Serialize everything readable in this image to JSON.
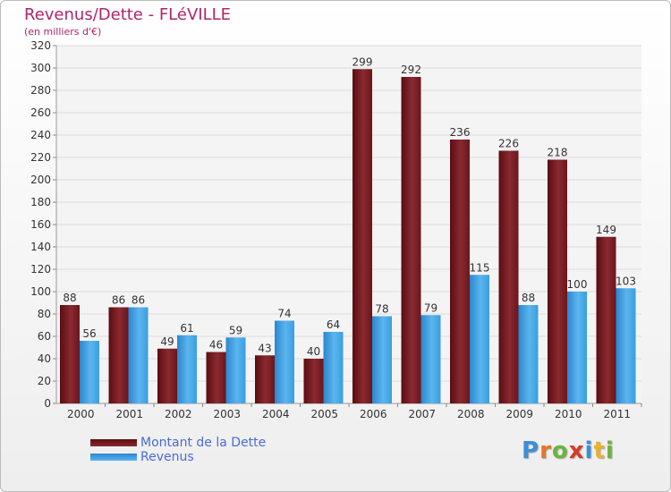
{
  "header": {
    "title": "Revenus/Dette - FLéVILLE",
    "subtitle": "(en milliers d'€)"
  },
  "chart_data": {
    "type": "bar",
    "title": "Revenus/Dette - FLéVILLE",
    "ylabel": "(en milliers d'€)",
    "categories": [
      "2000",
      "2001",
      "2002",
      "2003",
      "2004",
      "2005",
      "2006",
      "2007",
      "2008",
      "2009",
      "2010",
      "2011"
    ],
    "series": [
      {
        "name": "Montant de la Dette",
        "color": "#7a1d22",
        "values": [
          88,
          86,
          49,
          46,
          43,
          40,
          299,
          292,
          236,
          226,
          218,
          149
        ]
      },
      {
        "name": "Revenus",
        "color": "#3a9ee0",
        "values": [
          56,
          86,
          61,
          59,
          74,
          64,
          78,
          79,
          115,
          88,
          100,
          103
        ]
      }
    ],
    "ylim": [
      0,
      320
    ],
    "yticks": [
      0,
      20,
      40,
      60,
      80,
      100,
      120,
      140,
      160,
      180,
      200,
      220,
      240,
      260,
      280,
      300,
      320
    ],
    "grid": true,
    "legend": "bottom-left"
  },
  "legend": {
    "dette_label": "Montant de la Dette",
    "revenus_label": "Revenus"
  },
  "logo": {
    "letters": [
      "P",
      "r",
      "o",
      "x",
      "i",
      "t",
      "i"
    ],
    "colors": [
      "#3b8fd8",
      "#e8732a",
      "#6cb33f",
      "#d93a2b",
      "#3b8fd8",
      "#e8b32a",
      "#6cb33f"
    ]
  }
}
